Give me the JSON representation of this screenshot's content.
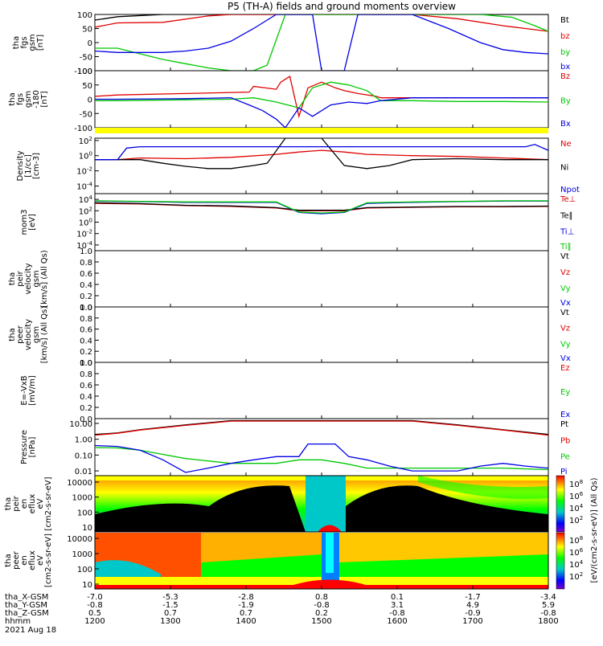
{
  "title": "P5 (TH-A) fields and ground moments overview",
  "date_label": "2021 Aug 18",
  "ephemeris": {
    "row_labels": [
      "tha_X-GSM",
      "tha_Y-GSM",
      "tha_Z-GSM",
      "hhmm"
    ],
    "columns": [
      [
        "-7.0",
        "-0.8",
        "0.5",
        "1200"
      ],
      [
        "-5.3",
        "-1.5",
        "0.7",
        "1300"
      ],
      [
        "-2.8",
        "-1.9",
        "0.7",
        "1400"
      ],
      [
        "0.8",
        "-0.8",
        "0.2",
        "1500"
      ],
      [
        "0.1",
        "3.1",
        "-0.8",
        "1600"
      ],
      [
        "-1.7",
        "4.9",
        "-0.9",
        "1700"
      ],
      [
        "-3.4",
        "5.9",
        "-0.8",
        "1800"
      ]
    ]
  },
  "colors": {
    "black": "#000000",
    "red": "#e00000",
    "green": "#00c800",
    "blue": "#0000e6",
    "yellow": "#ffff00"
  },
  "colorbar_label": "[eV/(cm2-s-sr-eV)] (All Qs)",
  "chart_data": [
    {
      "id": "fgs",
      "type": "line",
      "ylabel": [
        "tha",
        "fgs",
        "gsm",
        "[nT]"
      ],
      "ylim": [
        -100,
        100
      ],
      "yticks": [
        "100",
        "50",
        "0",
        "-50",
        "-100"
      ],
      "series": [
        {
          "name": "Bt",
          "color": "#000000",
          "x": [
            0,
            0.05,
            0.15,
            0.25,
            0.35,
            0.45,
            0.55,
            0.65,
            0.75,
            0.85,
            0.95,
            1
          ],
          "y": [
            80,
            92,
            100,
            100,
            100,
            100,
            100,
            100,
            100,
            100,
            100,
            100
          ]
        },
        {
          "name": "bz",
          "color": "#e00000",
          "x": [
            0,
            0.05,
            0.15,
            0.25,
            0.3,
            0.6,
            0.7,
            0.8,
            0.9,
            0.95,
            1
          ],
          "y": [
            55,
            70,
            72,
            95,
            100,
            100,
            100,
            85,
            60,
            50,
            40
          ]
        },
        {
          "name": "by",
          "color": "#00c800",
          "x": [
            0,
            0.05,
            0.1,
            0.15,
            0.2,
            0.25,
            0.3,
            0.35,
            0.38,
            0.42,
            0.85,
            0.92,
            0.97,
            1
          ],
          "y": [
            -20,
            -20,
            -40,
            -60,
            -75,
            -90,
            -100,
            -100,
            -80,
            100,
            100,
            90,
            60,
            40
          ]
        },
        {
          "name": "bx",
          "color": "#0000e6",
          "x": [
            0,
            0.05,
            0.1,
            0.15,
            0.2,
            0.25,
            0.3,
            0.35,
            0.4,
            0.48,
            0.5,
            0.55,
            0.58,
            0.62,
            0.7,
            0.78,
            0.85,
            0.9,
            0.95,
            1
          ],
          "y": [
            -30,
            -35,
            -35,
            -35,
            -30,
            -20,
            5,
            50,
            100,
            100,
            -100,
            -100,
            100,
            100,
            100,
            50,
            0,
            -25,
            -35,
            -40
          ]
        }
      ]
    },
    {
      "id": "fgs_gse",
      "type": "line",
      "ylabel": [
        "tha",
        "fgs",
        "gsm",
        "-180",
        "[nT]"
      ],
      "ylim": [
        -100,
        100
      ],
      "yticks": [
        "100",
        "50",
        "0",
        "-50",
        "-100"
      ],
      "series": [
        {
          "name": "Bz",
          "color": "#e00000",
          "x": [
            0,
            0.05,
            0.2,
            0.34,
            0.35,
            0.4,
            0.41,
            0.43,
            0.45,
            0.47,
            0.5,
            0.53,
            0.55,
            0.58,
            0.62,
            0.63,
            0.7,
            0.8,
            0.9,
            1
          ],
          "y": [
            10,
            15,
            20,
            25,
            45,
            35,
            60,
            80,
            -60,
            40,
            60,
            40,
            30,
            20,
            10,
            5,
            5,
            5,
            5,
            5
          ]
        },
        {
          "name": "By",
          "color": "#00c800",
          "x": [
            0,
            0.05,
            0.2,
            0.3,
            0.35,
            0.4,
            0.45,
            0.48,
            0.52,
            0.56,
            0.6,
            0.63,
            0.7,
            0.8,
            0.9,
            1
          ],
          "y": [
            -5,
            -5,
            -2,
            0,
            5,
            -10,
            -30,
            40,
            60,
            50,
            30,
            -5,
            -5,
            -8,
            -8,
            -10
          ]
        },
        {
          "name": "Bx",
          "color": "#0000e6",
          "x": [
            0,
            0.05,
            0.2,
            0.3,
            0.34,
            0.37,
            0.4,
            0.42,
            0.45,
            0.48,
            0.52,
            0.56,
            0.6,
            0.63,
            0.7,
            0.8,
            0.9,
            1
          ],
          "y": [
            0,
            0,
            2,
            5,
            -20,
            -40,
            -70,
            -100,
            -30,
            -60,
            -20,
            -10,
            -15,
            -5,
            5,
            5,
            5,
            5
          ]
        }
      ]
    },
    {
      "id": "density",
      "type": "line",
      "scale": "log",
      "ylabel": [
        "Density",
        "[1/cc]",
        "[cm-3]"
      ],
      "ylim": [
        1e-05,
        200
      ],
      "yticks": [
        "10^2",
        "10^0",
        "10^-2",
        "10^-4"
      ],
      "series": [
        {
          "name": "Ne",
          "color": "#e00000",
          "x": [
            0,
            0.05,
            0.1,
            0.2,
            0.3,
            0.4,
            0.45,
            0.5,
            0.55,
            0.6,
            0.7,
            0.8,
            0.9,
            1
          ],
          "y": [
            0.3,
            0.3,
            0.5,
            0.4,
            0.6,
            1.5,
            3,
            5,
            3,
            1.5,
            1,
            0.8,
            0.5,
            0.3
          ]
        },
        {
          "name": "Ni",
          "color": "#000000",
          "x": [
            0,
            0.05,
            0.1,
            0.15,
            0.2,
            0.25,
            0.3,
            0.35,
            0.38,
            0.42,
            0.45,
            0.5,
            0.55,
            0.6,
            0.65,
            0.7,
            0.8,
            0.9,
            1
          ],
          "y": [
            0.3,
            0.3,
            0.3,
            0.1,
            0.04,
            0.02,
            0.02,
            0.05,
            0.1,
            200,
            200,
            200,
            0.05,
            0.02,
            0.05,
            0.3,
            0.4,
            0.3,
            0.3
          ]
        },
        {
          "name": "Npot",
          "color": "#0000e6",
          "x": [
            0,
            0.05,
            0.07,
            0.1,
            0.2,
            0.3,
            0.4,
            0.5,
            0.6,
            0.7,
            0.8,
            0.9,
            0.95,
            0.97,
            1
          ],
          "y": [
            0.3,
            0.3,
            10,
            15,
            15,
            15,
            15,
            15,
            15,
            15,
            15,
            15,
            15,
            30,
            5
          ]
        }
      ]
    },
    {
      "id": "temperature",
      "type": "line",
      "scale": "log",
      "ylabel": [
        "mom3",
        "[eV]"
      ],
      "ylim": [
        1e-05,
        100000
      ],
      "yticks": [
        "10^4",
        "10^2",
        "10^0",
        "10^-2",
        "10^-4"
      ],
      "series": [
        {
          "name": "Te⊥",
          "color": "#e00000",
          "x": [
            0,
            0.1,
            0.2,
            0.3,
            0.4,
            0.45,
            0.5,
            0.55,
            0.6,
            0.7,
            0.8,
            0.9,
            1
          ],
          "y": [
            2000,
            1500,
            800,
            600,
            300,
            100,
            100,
            100,
            300,
            400,
            500,
            500,
            600
          ]
        },
        {
          "name": "Te∥",
          "color": "#000000",
          "x": [
            0,
            0.1,
            0.2,
            0.3,
            0.4,
            0.45,
            0.5,
            0.55,
            0.6,
            0.7,
            0.8,
            0.9,
            1
          ],
          "y": [
            2500,
            1800,
            900,
            700,
            350,
            120,
            120,
            120,
            350,
            450,
            550,
            550,
            650
          ]
        },
        {
          "name": "Ti⊥",
          "color": "#0000e6",
          "x": [
            0,
            0.1,
            0.2,
            0.3,
            0.4,
            0.45,
            0.5,
            0.55,
            0.6,
            0.7,
            0.8,
            0.9,
            1
          ],
          "y": [
            5000,
            4000,
            3000,
            3000,
            3000,
            50,
            30,
            50,
            2000,
            3000,
            4000,
            5000,
            5000
          ]
        },
        {
          "name": "Ti∥",
          "color": "#00c800",
          "x": [
            0,
            0.1,
            0.2,
            0.3,
            0.4,
            0.45,
            0.5,
            0.55,
            0.6,
            0.7,
            0.8,
            0.9,
            1
          ],
          "y": [
            5500,
            4500,
            3500,
            3500,
            3500,
            60,
            40,
            60,
            2500,
            3500,
            4500,
            5500,
            5500
          ]
        }
      ]
    },
    {
      "id": "peir_velocity",
      "type": "line",
      "ylabel": [
        "tha",
        "peir",
        "velocity",
        "gsm",
        "[km/s] (All Qs)"
      ],
      "ylim": [
        0,
        1
      ],
      "yticks": [
        "1.0",
        "0.8",
        "0.6",
        "0.4",
        "0.2",
        "0.0"
      ],
      "series": [
        {
          "name": "Vt",
          "color": "#000000",
          "x": [],
          "y": []
        },
        {
          "name": "Vz",
          "color": "#e00000",
          "x": [],
          "y": []
        },
        {
          "name": "Vy",
          "color": "#00c800",
          "x": [],
          "y": []
        },
        {
          "name": "Vx",
          "color": "#0000e6",
          "x": [],
          "y": []
        }
      ]
    },
    {
      "id": "peer_velocity",
      "type": "line",
      "ylabel": [
        "tha",
        "peer",
        "velocity",
        "gsm",
        "[km/s] (All Qs)"
      ],
      "ylim": [
        0,
        1
      ],
      "yticks": [
        "1.0",
        "0.8",
        "0.6",
        "0.4",
        "0.2",
        "0.0"
      ],
      "series": [
        {
          "name": "Vt",
          "color": "#000000",
          "x": [],
          "y": []
        },
        {
          "name": "Vz",
          "color": "#e00000",
          "x": [],
          "y": []
        },
        {
          "name": "Vy",
          "color": "#00c800",
          "x": [],
          "y": []
        },
        {
          "name": "Vx",
          "color": "#0000e6",
          "x": [],
          "y": []
        }
      ]
    },
    {
      "id": "efield",
      "type": "line",
      "ylabel": [
        "E=-VxB",
        "[mV/m]"
      ],
      "ylim": [
        0,
        1
      ],
      "yticks": [
        "1.0",
        "0.8",
        "0.6",
        "0.4",
        "0.2",
        "0.0"
      ],
      "series": [
        {
          "name": "Ez",
          "color": "#e00000",
          "x": [],
          "y": []
        },
        {
          "name": "Ey",
          "color": "#00c800",
          "x": [],
          "y": []
        },
        {
          "name": "Ex",
          "color": "#0000e6",
          "x": [],
          "y": []
        }
      ]
    },
    {
      "id": "pressure",
      "type": "line",
      "scale": "log",
      "ylabel": [
        "Pressure",
        "[nPa]"
      ],
      "ylim": [
        0.005,
        20
      ],
      "yticks": [
        "10.00",
        "1.00",
        "0.10",
        "0.01"
      ],
      "series": [
        {
          "name": "Pt",
          "color": "#000000",
          "x": [
            0,
            0.05,
            0.1,
            0.2,
            0.3,
            0.7,
            0.8,
            0.9,
            1
          ],
          "y": [
            2,
            2.5,
            4,
            8,
            15,
            15,
            8,
            4,
            2
          ]
        },
        {
          "name": "Pb",
          "color": "#e00000",
          "x": [
            0,
            0.05,
            0.1,
            0.2,
            0.3,
            0.7,
            0.8,
            0.9,
            1
          ],
          "y": [
            1.8,
            2.4,
            3.8,
            7.5,
            14,
            14,
            7.5,
            3.8,
            1.8
          ]
        },
        {
          "name": "Pe",
          "color": "#00c800",
          "x": [
            0,
            0.05,
            0.1,
            0.2,
            0.3,
            0.4,
            0.45,
            0.5,
            0.55,
            0.6,
            0.7,
            0.8,
            0.9,
            1
          ],
          "y": [
            0.3,
            0.28,
            0.2,
            0.06,
            0.03,
            0.03,
            0.05,
            0.05,
            0.03,
            0.015,
            0.015,
            0.015,
            0.015,
            0.012
          ]
        },
        {
          "name": "Pi",
          "color": "#0000e6",
          "x": [
            0,
            0.05,
            0.1,
            0.15,
            0.2,
            0.25,
            0.3,
            0.35,
            0.4,
            0.45,
            0.47,
            0.5,
            0.53,
            0.56,
            0.6,
            0.65,
            0.7,
            0.75,
            0.8,
            0.85,
            0.9,
            0.95,
            1
          ],
          "y": [
            0.4,
            0.35,
            0.2,
            0.05,
            0.008,
            0.015,
            0.03,
            0.05,
            0.08,
            0.08,
            0.5,
            0.5,
            0.5,
            0.08,
            0.05,
            0.02,
            0.01,
            0.01,
            0.01,
            0.02,
            0.03,
            0.02,
            0.015
          ]
        }
      ]
    },
    {
      "id": "peir_spectrogram",
      "type": "heatmap",
      "ylabel": [
        "tha",
        "peir",
        "en",
        "eflux",
        "eV",
        "[cm2-s-sr-eV]"
      ],
      "yticks": [
        "10000",
        "1000",
        "100",
        "10"
      ],
      "cb_ticks": [
        "10^8",
        "10^6",
        "10^4",
        "10^2"
      ]
    },
    {
      "id": "peer_spectrogram",
      "type": "heatmap",
      "ylabel": [
        "tha",
        "peer",
        "en",
        "eflux",
        "eV",
        "[cm2-s-sr-eV]"
      ],
      "yticks": [
        "10000",
        "1000",
        "100",
        "10"
      ],
      "cb_ticks": [
        "10^8",
        "10^6",
        "10^4",
        "10^2"
      ]
    }
  ]
}
